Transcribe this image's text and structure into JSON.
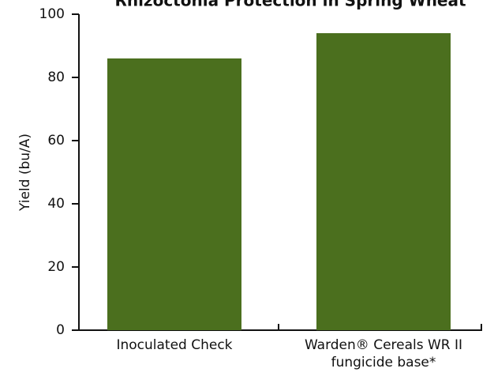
{
  "chart_data": {
    "type": "bar",
    "title": "Rhizoctonia Protection in Spring Wheat",
    "y_label": "Yield (bu/A)",
    "categories": [
      "Inoculated Check",
      "Warden® Cereals WR II fungicide base*"
    ],
    "values": [
      86,
      94
    ],
    "color": "#4b6f1e",
    "ylim": [
      0,
      100
    ],
    "yticks": [
      0,
      20,
      40,
      60,
      80,
      100
    ]
  }
}
